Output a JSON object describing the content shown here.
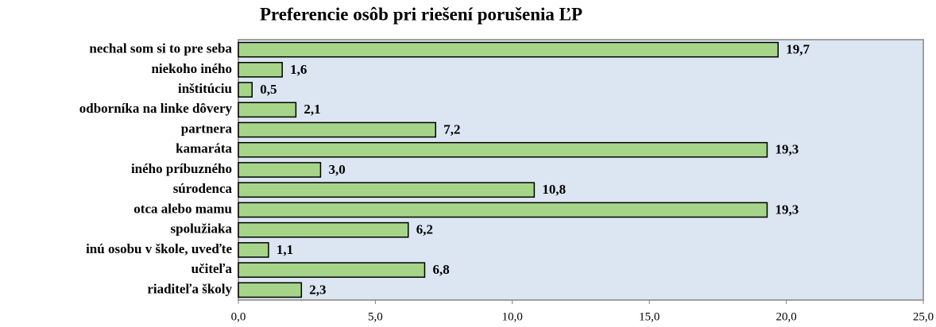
{
  "chart_data": {
    "type": "hbar",
    "title": "Preferencie osôb pri riešení porušenia ĽP",
    "categories": [
      "nechal som si to pre seba",
      "niekoho iného",
      "inštitúciu",
      "odborníka na linke dôvery",
      "partnera",
      "kamaráta",
      "iného príbuzného",
      "súrodenca",
      "otca alebo mamu",
      "spolužiaka",
      "inú osobu v škole, uveďte",
      "učiteľa",
      "riaditeľa školy"
    ],
    "values": [
      19.7,
      1.6,
      0.5,
      2.1,
      7.2,
      19.3,
      3.0,
      10.8,
      19.3,
      6.2,
      1.1,
      6.8,
      2.3
    ],
    "value_labels": [
      "19,7",
      "1,6",
      "0,5",
      "2,1",
      "7,2",
      "19,3",
      "3,0",
      "10,8",
      "19,3",
      "6,2",
      "1,1",
      "6,8",
      "2,3"
    ],
    "color": "#a6d58a",
    "xlim": [
      0,
      25
    ],
    "xticks": [
      {
        "value": 0,
        "label": "0,0"
      },
      {
        "value": 5,
        "label": "5,0"
      },
      {
        "value": 10,
        "label": "10,0"
      },
      {
        "value": 15,
        "label": "15,0"
      },
      {
        "value": 20,
        "label": "20,0"
      },
      {
        "value": 25,
        "label": "25,0"
      }
    ],
    "grid": false
  }
}
